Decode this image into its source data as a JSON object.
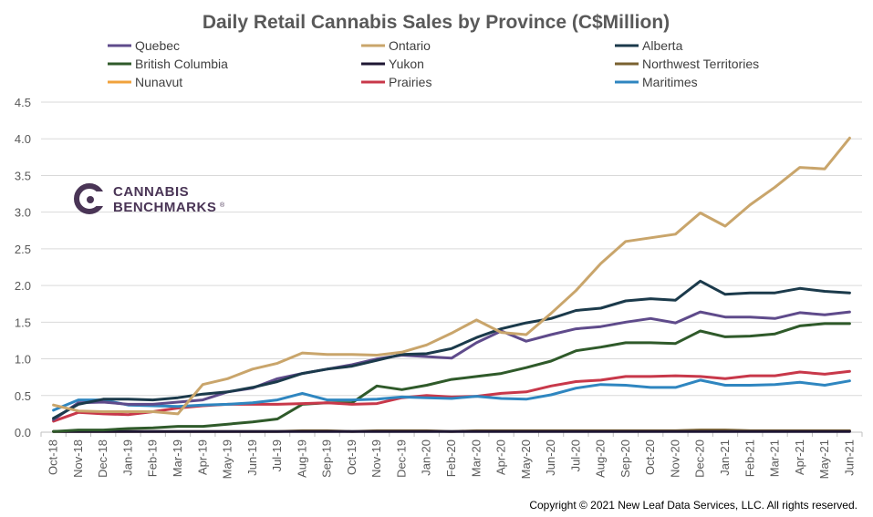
{
  "chart_data": {
    "type": "line",
    "title": "Daily Retail Cannabis Sales by Province (C$Million)",
    "xlabel": "",
    "ylabel": "",
    "ylim": [
      0,
      4.5
    ],
    "yticks": [
      "0.0",
      "0.5",
      "1.0",
      "1.5",
      "2.0",
      "2.5",
      "3.0",
      "3.5",
      "4.0",
      "4.5"
    ],
    "grid": "horizontal",
    "legend_position": "top",
    "categories": [
      "Oct-18",
      "Nov-18",
      "Dec-18",
      "Jan-19",
      "Feb-19",
      "Mar-19",
      "Apr-19",
      "May-19",
      "Jun-19",
      "Jul-19",
      "Aug-19",
      "Sep-19",
      "Oct-19",
      "Nov-19",
      "Dec-19",
      "Jan-20",
      "Feb-20",
      "Mar-20",
      "Apr-20",
      "May-20",
      "Jun-20",
      "Jul-20",
      "Aug-20",
      "Sep-20",
      "Oct-20",
      "Nov-20",
      "Dec-20",
      "Jan-21",
      "Feb-21",
      "Mar-21",
      "Apr-21",
      "May-21",
      "Jun-21"
    ],
    "series": [
      {
        "name": "Quebec",
        "color": "#5f4b8b",
        "values": [
          0.17,
          0.4,
          0.41,
          0.38,
          0.38,
          0.41,
          0.44,
          0.55,
          0.6,
          0.73,
          0.8,
          0.86,
          0.92,
          1.0,
          1.05,
          1.03,
          1.01,
          1.22,
          1.38,
          1.24,
          1.33,
          1.41,
          1.44,
          1.5,
          1.55,
          1.49,
          1.64,
          1.57,
          1.57,
          1.55,
          1.63,
          1.6,
          1.64
        ]
      },
      {
        "name": "Ontario",
        "color": "#c9a56b",
        "values": [
          0.37,
          0.29,
          0.28,
          0.28,
          0.28,
          0.25,
          0.65,
          0.73,
          0.86,
          0.94,
          1.08,
          1.06,
          1.06,
          1.05,
          1.09,
          1.19,
          1.35,
          1.53,
          1.36,
          1.33,
          1.62,
          1.93,
          2.3,
          2.6,
          2.65,
          2.7,
          2.99,
          2.81,
          3.1,
          3.34,
          3.61,
          3.59,
          4.01
        ]
      },
      {
        "name": "Alberta",
        "color": "#1b3a4b",
        "values": [
          0.19,
          0.38,
          0.45,
          0.45,
          0.44,
          0.47,
          0.52,
          0.55,
          0.61,
          0.69,
          0.8,
          0.86,
          0.9,
          0.98,
          1.06,
          1.07,
          1.14,
          1.29,
          1.41,
          1.49,
          1.55,
          1.66,
          1.69,
          1.79,
          1.82,
          1.8,
          2.06,
          1.88,
          1.9,
          1.9,
          1.96,
          1.92,
          1.9
        ]
      },
      {
        "name": "British Columbia",
        "color": "#2f5a2a",
        "values": [
          0.01,
          0.03,
          0.03,
          0.05,
          0.06,
          0.08,
          0.08,
          0.11,
          0.14,
          0.18,
          0.38,
          0.4,
          0.4,
          0.63,
          0.58,
          0.64,
          0.72,
          0.76,
          0.8,
          0.88,
          0.97,
          1.11,
          1.16,
          1.22,
          1.22,
          1.21,
          1.38,
          1.3,
          1.31,
          1.34,
          1.45,
          1.48,
          1.48
        ]
      },
      {
        "name": "Yukon",
        "color": "#1e1633",
        "values": [
          0.01,
          0.01,
          0.01,
          0.01,
          0.01,
          0.01,
          0.01,
          0.01,
          0.01,
          0.01,
          0.01,
          0.01,
          0.01,
          0.01,
          0.01,
          0.01,
          0.01,
          0.01,
          0.01,
          0.01,
          0.01,
          0.01,
          0.01,
          0.01,
          0.01,
          0.01,
          0.01,
          0.01,
          0.01,
          0.01,
          0.01,
          0.01,
          0.01
        ]
      },
      {
        "name": "Northwest Territories",
        "color": "#7a6230",
        "values": [
          0.01,
          0.01,
          0.01,
          0.01,
          0.01,
          0.01,
          0.01,
          0.01,
          0.01,
          0.01,
          0.02,
          0.02,
          0.01,
          0.02,
          0.02,
          0.02,
          0.01,
          0.02,
          0.02,
          0.02,
          0.02,
          0.02,
          0.02,
          0.02,
          0.02,
          0.02,
          0.03,
          0.03,
          0.02,
          0.02,
          0.02,
          0.02,
          0.02
        ]
      },
      {
        "name": "Nunavut",
        "color": "#f0a23c",
        "values": [
          null,
          null,
          null,
          null,
          null,
          null,
          null,
          null,
          null,
          null,
          null,
          null,
          null,
          null,
          null,
          null,
          null,
          null,
          null,
          null,
          null,
          null,
          null,
          null,
          null,
          null,
          null,
          null,
          null,
          null,
          null,
          null,
          null
        ]
      },
      {
        "name": "Prairies",
        "color": "#c8384a",
        "values": [
          0.15,
          0.27,
          0.25,
          0.24,
          0.28,
          0.33,
          0.36,
          0.38,
          0.38,
          0.38,
          0.39,
          0.4,
          0.38,
          0.39,
          0.47,
          0.5,
          0.48,
          0.49,
          0.53,
          0.55,
          0.63,
          0.69,
          0.71,
          0.76,
          0.76,
          0.77,
          0.76,
          0.73,
          0.77,
          0.77,
          0.82,
          0.79,
          0.83
        ]
      },
      {
        "name": "Maritimes",
        "color": "#2f86c0",
        "values": [
          0.3,
          0.44,
          0.44,
          0.37,
          0.36,
          0.35,
          0.37,
          0.38,
          0.4,
          0.44,
          0.53,
          0.44,
          0.44,
          0.45,
          0.48,
          0.47,
          0.46,
          0.49,
          0.46,
          0.45,
          0.51,
          0.6,
          0.65,
          0.64,
          0.61,
          0.61,
          0.71,
          0.64,
          0.64,
          0.65,
          0.68,
          0.64,
          0.7
        ]
      }
    ]
  },
  "logo": {
    "line1": "CANNABIS",
    "line2": "BENCHMARKS",
    "mark": "®"
  },
  "copyright": "Copyright  © 2021 New Leaf Data Services, LLC. All rights reserved."
}
